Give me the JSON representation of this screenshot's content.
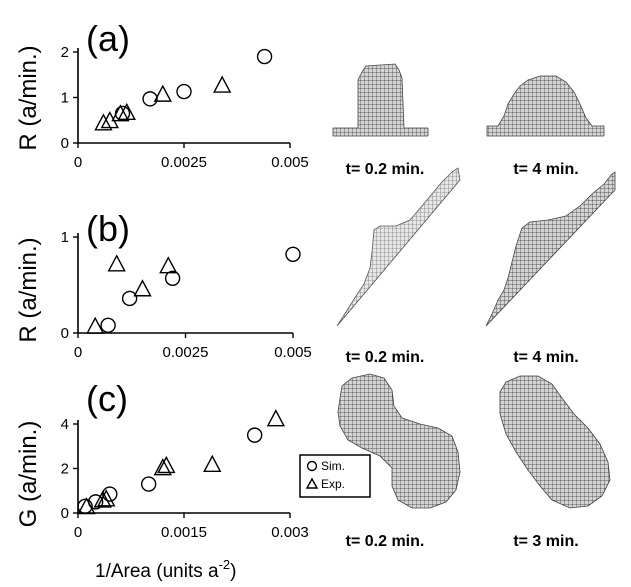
{
  "chart_data": [
    {
      "type": "scatter",
      "panel_label": "(a)",
      "ylabel": "R (a/min.)",
      "xlim": [
        0,
        0.005
      ],
      "ylim": [
        0,
        2
      ],
      "x_ticks": [
        "0",
        "0.0025",
        "0.005"
      ],
      "y_ticks": [
        "0",
        "1",
        "2"
      ],
      "series": [
        {
          "name": "Sim.",
          "marker": "circle",
          "x": [
            0.00105,
            0.0017,
            0.0025,
            0.0044
          ],
          "y": [
            0.65,
            0.97,
            1.13,
            1.9
          ]
        },
        {
          "name": "Exp.",
          "marker": "triangle",
          "x": [
            0.0006,
            0.00075,
            0.001,
            0.00115,
            0.002,
            0.0034
          ],
          "y": [
            0.4,
            0.45,
            0.6,
            0.63,
            1.03,
            1.23
          ]
        }
      ],
      "snapshots": [
        "t= 0.2 min.",
        "t= 4 min."
      ]
    },
    {
      "type": "scatter",
      "panel_label": "(b)",
      "ylabel": "R (a/min.)",
      "xlim": [
        0,
        0.005
      ],
      "ylim": [
        0,
        1
      ],
      "x_ticks": [
        "0",
        "0.0025",
        "0.005"
      ],
      "y_ticks": [
        "0",
        "1"
      ],
      "series": [
        {
          "name": "Sim.",
          "marker": "circle",
          "x": [
            0.0007,
            0.0012,
            0.0022,
            0.005
          ],
          "y": [
            0.08,
            0.36,
            0.57,
            0.82
          ]
        },
        {
          "name": "Exp.",
          "marker": "triangle",
          "x": [
            0.0004,
            0.0009,
            0.0015,
            0.0021
          ],
          "y": [
            0.05,
            0.7,
            0.44,
            0.68
          ]
        }
      ],
      "snapshots": [
        "t= 0.2 min.",
        "t= 4 min."
      ]
    },
    {
      "type": "scatter",
      "panel_label": "(c)",
      "ylabel": "G (a/min.)",
      "xlabel": "1/Area    (units a",
      "xlabel_sup": "-2",
      "xlabel_close": ")",
      "xlim": [
        0,
        0.003
      ],
      "ylim": [
        0,
        4
      ],
      "x_ticks": [
        "0",
        "0.0015",
        "0.003"
      ],
      "y_ticks": [
        "0",
        "2",
        "4"
      ],
      "series": [
        {
          "name": "Sim.",
          "marker": "circle",
          "x": [
            0.0001,
            0.00025,
            0.00045,
            0.001,
            0.0025
          ],
          "y": [
            0.3,
            0.5,
            0.85,
            1.3,
            3.5
          ]
        },
        {
          "name": "Exp.",
          "marker": "triangle",
          "x": [
            0.00012,
            0.00035,
            0.0004,
            0.0012,
            0.00125,
            0.0019,
            0.0028
          ],
          "y": [
            0.2,
            0.5,
            0.55,
            1.95,
            2.05,
            2.1,
            4.15
          ]
        }
      ],
      "legend": {
        "position": "right",
        "entries": [
          "Sim.",
          "Exp."
        ]
      },
      "snapshots": [
        "t= 0.2 min.",
        "t= 3 min."
      ]
    }
  ]
}
